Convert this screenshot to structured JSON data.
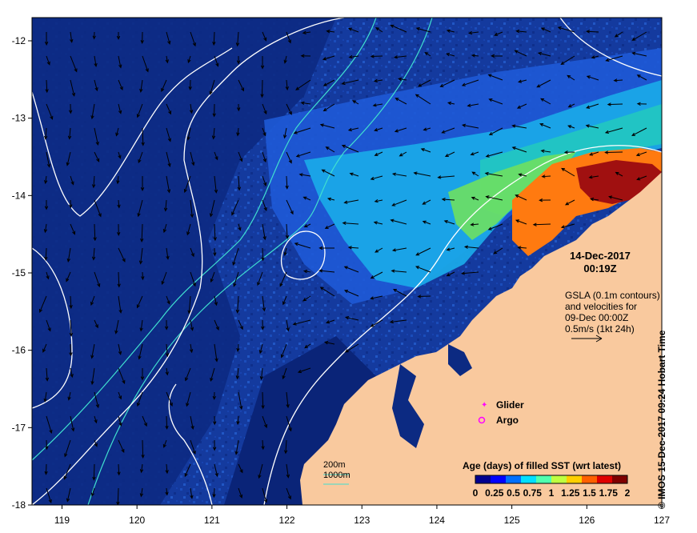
{
  "map": {
    "lon_range": [
      118.6,
      127.0
    ],
    "lat_range": [
      -18.0,
      -11.7
    ],
    "x_ticks": [
      "119",
      "120",
      "121",
      "122",
      "123",
      "124",
      "125",
      "126",
      "127"
    ],
    "y_ticks": [
      "-12",
      "-13",
      "-14",
      "-15",
      "-16",
      "-17",
      "-18"
    ],
    "land_color": "#f9c99e",
    "ocean_color": "#143a9e"
  },
  "annotations": {
    "date": "14-Dec-2017",
    "time": "00:19Z",
    "gsla_line1": "GSLA (0.1m contours)",
    "gsla_line2": "and velocities for",
    "gsla_line3": "09-Dec 00:00Z",
    "gsla_line4": "0.5m/s (1kt 24h)",
    "glider_label": "Glider",
    "argo_label": "Argo",
    "depth_200": "200m",
    "depth_1000": "1000m",
    "credit": "© IMOS 15-Dec-2017 09:24 Hobart Time"
  },
  "colorbar": {
    "title": "Age (days) of filled SST (wrt latest)",
    "tick_labels": [
      "0",
      "0.25",
      "0.5",
      "0.75",
      "1",
      "1.25",
      "1.5",
      "1.75",
      "2"
    ],
    "colors": [
      "#00008f",
      "#0000ff",
      "#0070ff",
      "#00dfff",
      "#50ffaf",
      "#bfff40",
      "#ffcf00",
      "#ff6000",
      "#df0000",
      "#800000"
    ]
  },
  "legend_colors": {
    "glider": "#ff00ff",
    "argo": "#ff00ff",
    "contour_200": "#40e0d0",
    "contour_1000": "#40e0d0",
    "gsla_contour": "#ffffff"
  }
}
